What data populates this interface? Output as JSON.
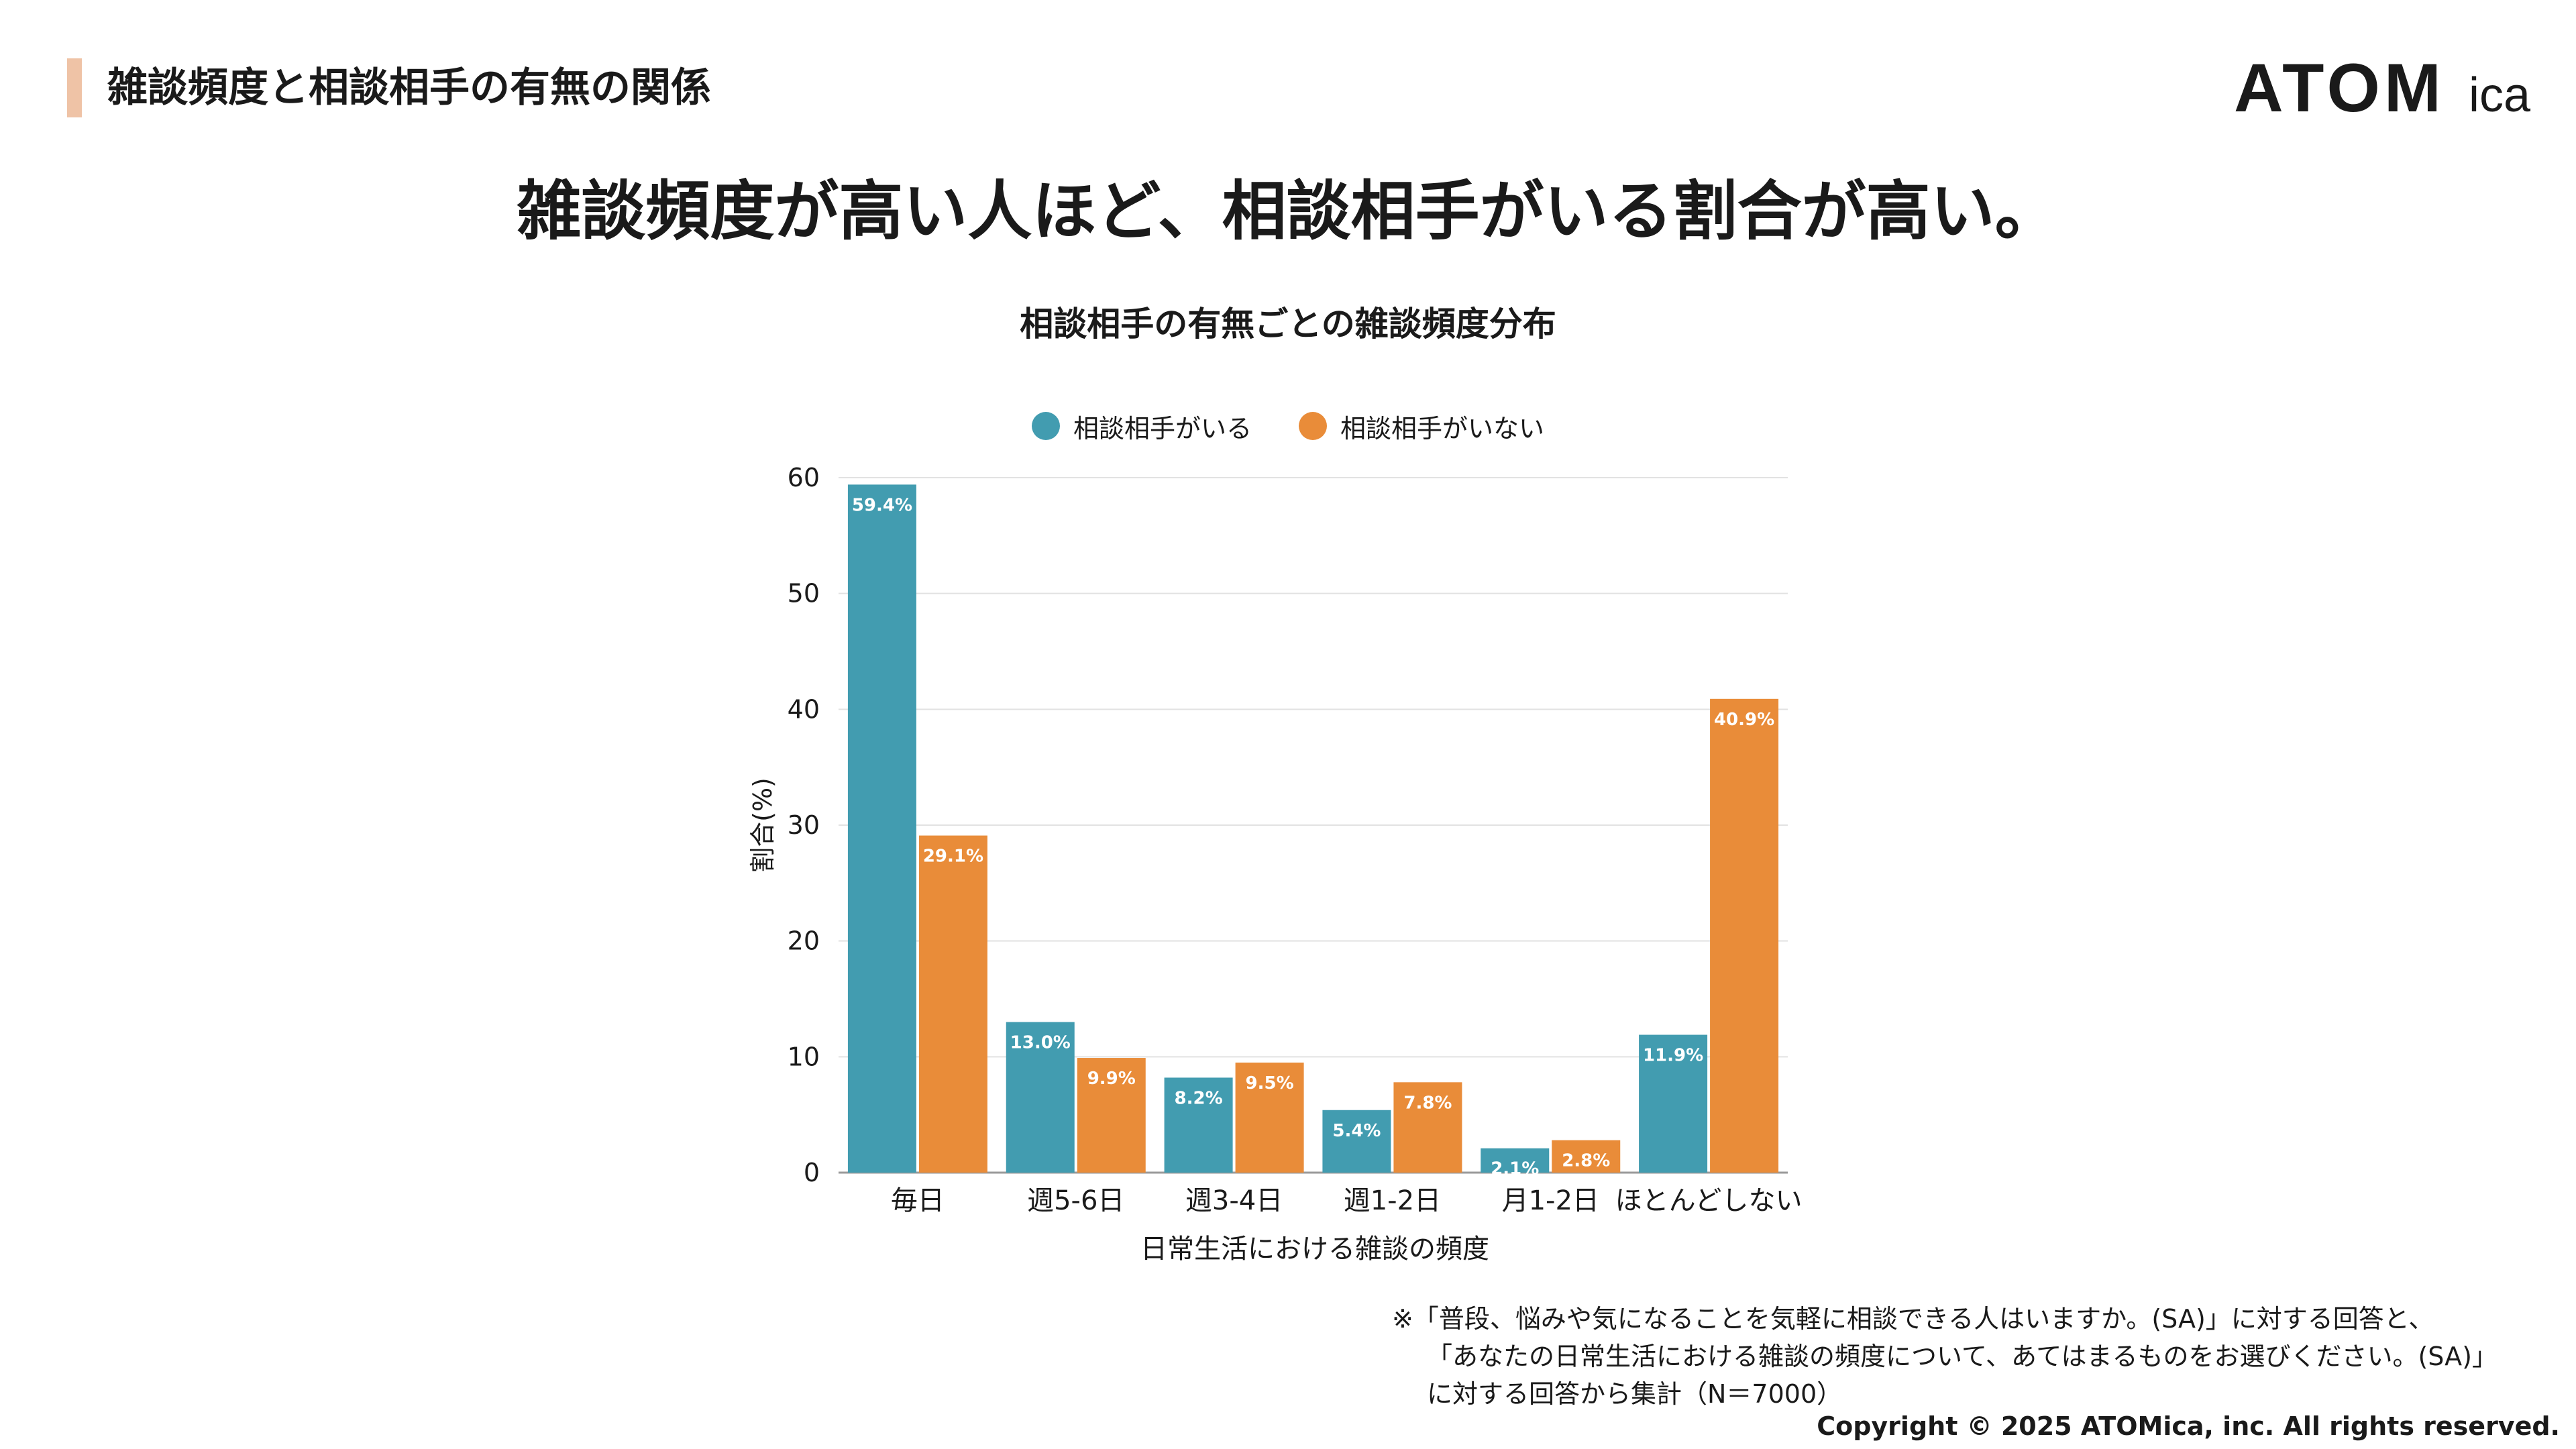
{
  "header": {
    "title": "雑談頻度と相談相手の有無の関係"
  },
  "logo": {
    "bold": "ATOM",
    "light": "ica"
  },
  "headline": "雑談頻度が高い人ほど、相談相手がいる割合が高い。",
  "colors": {
    "teal": "#429cb0",
    "orange": "#e98c39",
    "accent": "#efc3a6"
  },
  "chart_data": {
    "type": "bar",
    "title": "相談相手の有無ごとの雑談頻度分布",
    "xlabel": "日常生活における雑談の頻度",
    "ylabel": "割合(%)",
    "ylim": [
      0,
      60
    ],
    "yticks": [
      "0",
      "10",
      "20",
      "30",
      "40",
      "50",
      "60"
    ],
    "grid": true,
    "legend_position": "top-center",
    "categories": [
      "毎日",
      "週5-6日",
      "週3-4日",
      "週1-2日",
      "月1-2日",
      "ほとんどしない"
    ],
    "series": [
      {
        "name": "相談相手がいる",
        "color": "#429cb0",
        "values": [
          59.4,
          13.0,
          8.2,
          5.4,
          2.1,
          11.9
        ],
        "labels": [
          "59.4%",
          "13.0%",
          "8.2%",
          "5.4%",
          "2.1%",
          "11.9%"
        ]
      },
      {
        "name": "相談相手がいない",
        "color": "#e98c39",
        "values": [
          29.1,
          9.9,
          9.5,
          7.8,
          2.8,
          40.9
        ],
        "labels": [
          "29.1%",
          "9.9%",
          "9.5%",
          "7.8%",
          "2.8%",
          "40.9%"
        ]
      }
    ]
  },
  "note": {
    "lines": [
      "※「普段、悩みや気になることを気軽に相談できる人はいますか。(SA)」に対する回答と、",
      "「あなたの日常生活における雑談の頻度について、あてはまるものをお選びください。(SA)」",
      "に対する回答から集計（N＝7000）"
    ]
  },
  "copyright": "Copyright © 2025 ATOMica, inc. All rights reserved."
}
